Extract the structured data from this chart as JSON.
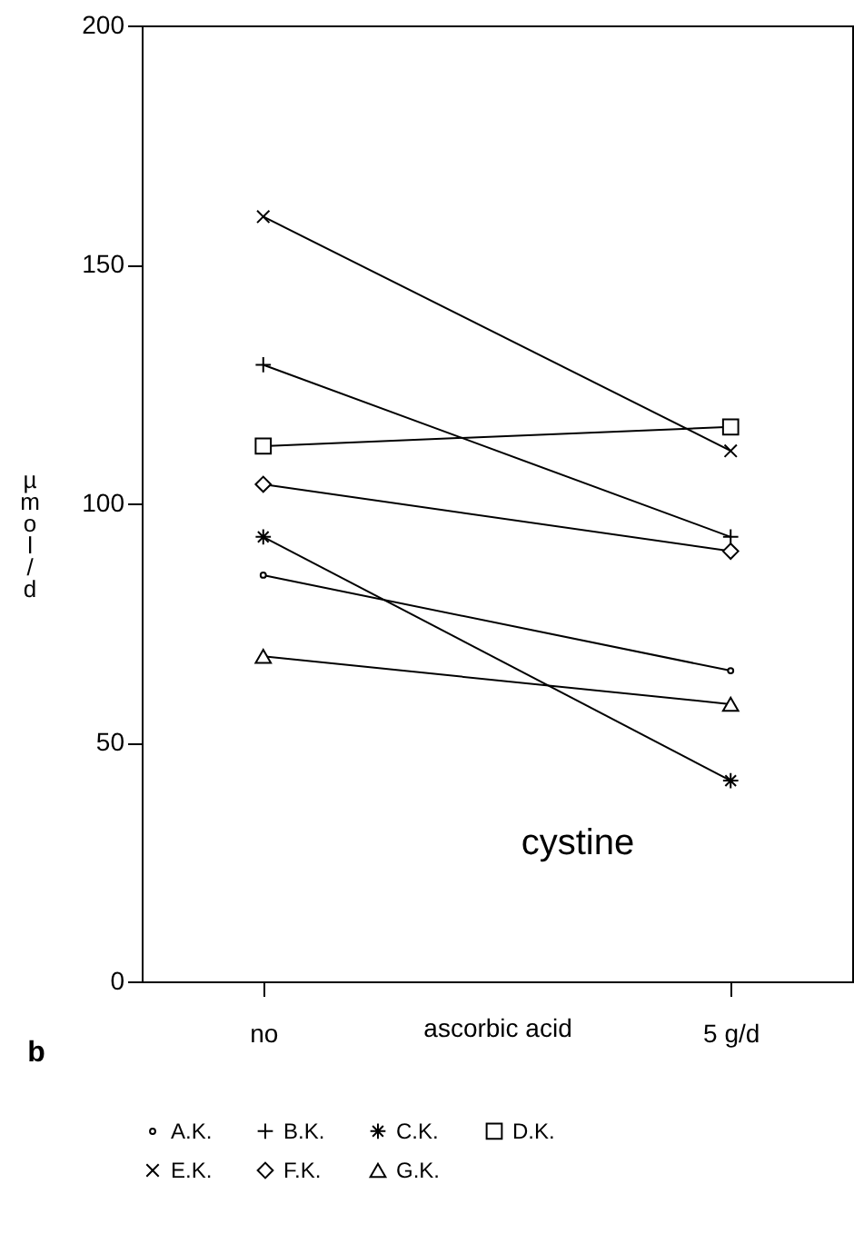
{
  "chart_data": {
    "type": "line",
    "xlabel": "ascorbic acid",
    "ylabel": "µmol/d",
    "categories": [
      "no",
      "5 g/d"
    ],
    "ylim": [
      0,
      200
    ],
    "yticks": [
      0,
      50,
      100,
      150,
      200
    ],
    "grid": false,
    "legend": "bottom",
    "line_style": "solid",
    "annotations": [
      "cystine",
      "b"
    ],
    "series": [
      {
        "name": "A.K.",
        "color": "#000000",
        "marker": "circle",
        "values": [
          85,
          65
        ]
      },
      {
        "name": "B.K.",
        "color": "#000000",
        "marker": "plus",
        "values": [
          129,
          93
        ]
      },
      {
        "name": "C.K.",
        "color": "#000000",
        "marker": "cross",
        "values": [
          93,
          42
        ]
      },
      {
        "name": "D.K.",
        "color": "#000000",
        "marker": "square",
        "values": [
          112,
          116
        ]
      },
      {
        "name": "E.K.",
        "color": "#000000",
        "marker": "cross",
        "values": [
          160,
          111
        ]
      },
      {
        "name": "F.K.",
        "color": "#000000",
        "marker": "diamond",
        "values": [
          104,
          90
        ]
      },
      {
        "name": "G.K.",
        "color": "#000000",
        "marker": "triangle",
        "values": [
          68,
          58
        ]
      }
    ]
  }
}
